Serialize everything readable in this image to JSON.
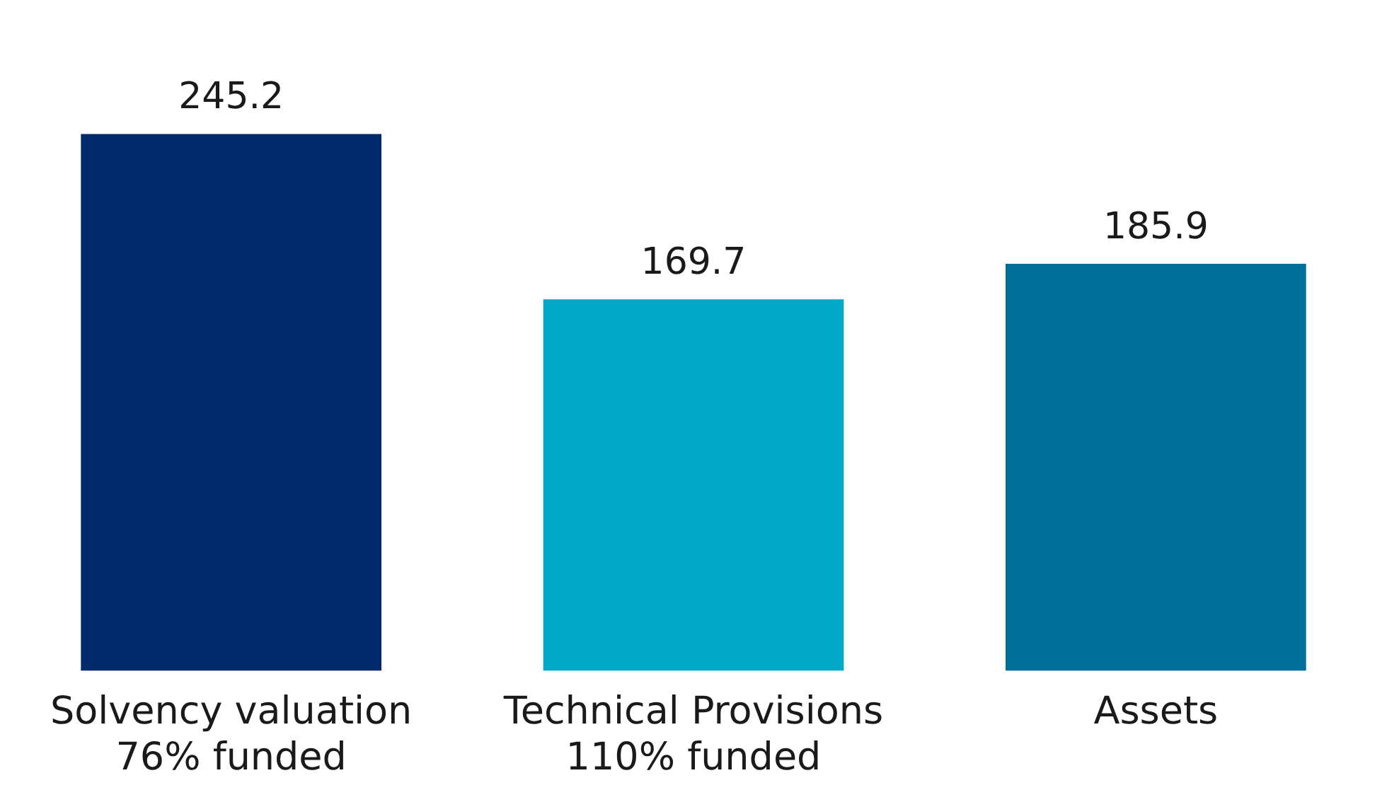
{
  "chart_data": {
    "type": "bar",
    "categories": [
      "Solvency valuation\n76% funded",
      "Technical Provisions\n110% funded",
      "Assets"
    ],
    "values": [
      245.2,
      169.7,
      185.9
    ],
    "colors": [
      "#002a6c",
      "#00a7c7",
      "#006e9a"
    ],
    "data_labels": true,
    "grid": false,
    "legend": false
  }
}
